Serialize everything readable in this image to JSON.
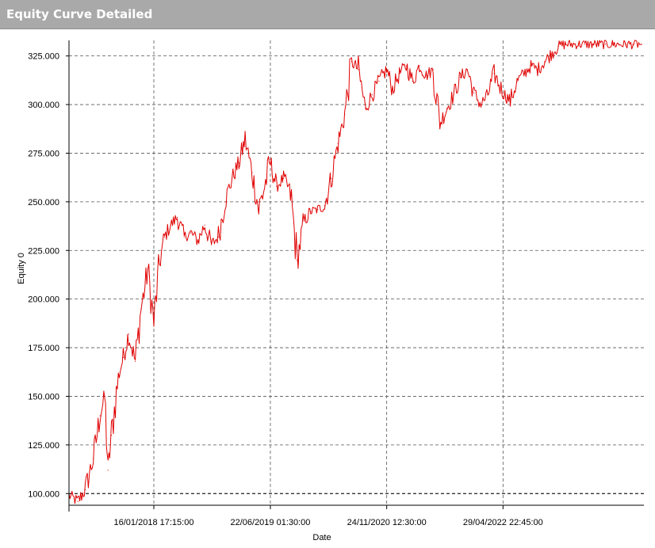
{
  "window": {
    "title": "Equity Curve Detailed"
  },
  "colors": {
    "up": "#00aa00",
    "down": "#e00000",
    "grid": "#555555",
    "axis": "#000000",
    "title_bg": "#a9a9a9"
  },
  "chart_data": {
    "type": "line",
    "title": "",
    "xlabel": "Date",
    "ylabel": "Equity 0",
    "ylim": [
      94000,
      333000
    ],
    "xlim": [
      "2017-01-01",
      "2024-01-20"
    ],
    "grid": true,
    "y_ticks": [
      100000,
      125000,
      150000,
      175000,
      200000,
      225000,
      250000,
      275000,
      300000,
      325000
    ],
    "y_tick_labels": [
      "100.000",
      "125.000",
      "150.000",
      "175.000",
      "200.000",
      "225.000",
      "250.000",
      "275.000",
      "300.000",
      "325.000"
    ],
    "x_ticks": [
      "2018-01-16",
      "2019-06-22",
      "2020-11-24",
      "2022-04-29"
    ],
    "x_tick_labels": [
      "16/01/2018 17:15:00",
      "22/06/2019 01:30:00",
      "24/11/2020 12:30:00",
      "29/04/2022 22:45:00"
    ],
    "reference_line": 100000,
    "series": [
      {
        "name": "",
        "x": [
          "2017-01-01",
          "2017-02-10",
          "2017-03-15",
          "2017-04-20",
          "2017-05-20",
          "2017-06-10",
          "2017-06-25",
          "2017-07-10",
          "2017-08-10",
          "2017-09-01",
          "2017-09-25",
          "2017-10-25",
          "2017-11-20",
          "2017-12-20",
          "2018-01-16",
          "2018-02-10",
          "2018-03-05",
          "2018-04-01",
          "2018-05-01",
          "2018-06-01",
          "2018-07-01",
          "2018-08-01",
          "2018-09-01",
          "2018-10-01",
          "2018-11-01",
          "2018-12-01",
          "2019-01-01",
          "2019-02-01",
          "2019-03-01",
          "2019-04-01",
          "2019-05-01",
          "2019-06-22",
          "2019-07-20",
          "2019-08-20",
          "2019-09-20",
          "2019-10-20",
          "2019-11-20",
          "2019-12-20",
          "2020-01-20",
          "2020-02-20",
          "2020-03-20",
          "2020-04-20",
          "2020-05-20",
          "2020-06-20",
          "2020-07-20",
          "2020-08-20",
          "2020-09-20",
          "2020-10-20",
          "2020-11-24",
          "2020-12-20",
          "2021-01-20",
          "2021-02-20",
          "2021-03-20",
          "2021-04-20",
          "2021-05-20",
          "2021-06-20",
          "2021-07-20",
          "2021-08-20",
          "2021-09-20",
          "2021-10-20",
          "2021-11-20",
          "2021-12-20",
          "2022-01-20",
          "2022-02-20",
          "2022-03-20",
          "2022-04-29",
          "2022-06-01",
          "2022-07-01",
          "2022-08-01",
          "2022-09-01",
          "2022-10-01",
          "2022-11-01",
          "2022-12-01",
          "2023-01-01",
          "2023-02-01",
          "2023-03-01",
          "2023-04-01",
          "2023-05-01",
          "2023-06-01",
          "2023-07-01",
          "2023-08-01",
          "2023-09-01",
          "2023-10-01",
          "2023-11-01",
          "2023-12-01",
          "2024-01-10"
        ],
        "values": [
          99000,
          96000,
          102000,
          118000,
          140000,
          150000,
          112000,
          130000,
          160000,
          170000,
          182000,
          168000,
          195000,
          215000,
          188000,
          218000,
          232000,
          238000,
          242000,
          232000,
          234000,
          230000,
          238000,
          228000,
          232000,
          250000,
          262000,
          270000,
          282000,
          265000,
          246000,
          270000,
          258000,
          262000,
          255000,
          220000,
          240000,
          245000,
          246000,
          248000,
          262000,
          280000,
          295000,
          322000,
          318000,
          298000,
          305000,
          312000,
          318000,
          308000,
          316000,
          320000,
          312000,
          320000,
          315000,
          318000,
          290000,
          298000,
          305000,
          314000,
          318000,
          306000,
          300000,
          305000,
          316000,
          306000,
          302000,
          312000,
          316000,
          320000,
          318000,
          322000,
          326000,
          330000,
          331000,
          331000,
          331000,
          331000,
          331000,
          331000,
          331000,
          331000,
          331000,
          331000,
          331000,
          331000
        ]
      }
    ]
  }
}
